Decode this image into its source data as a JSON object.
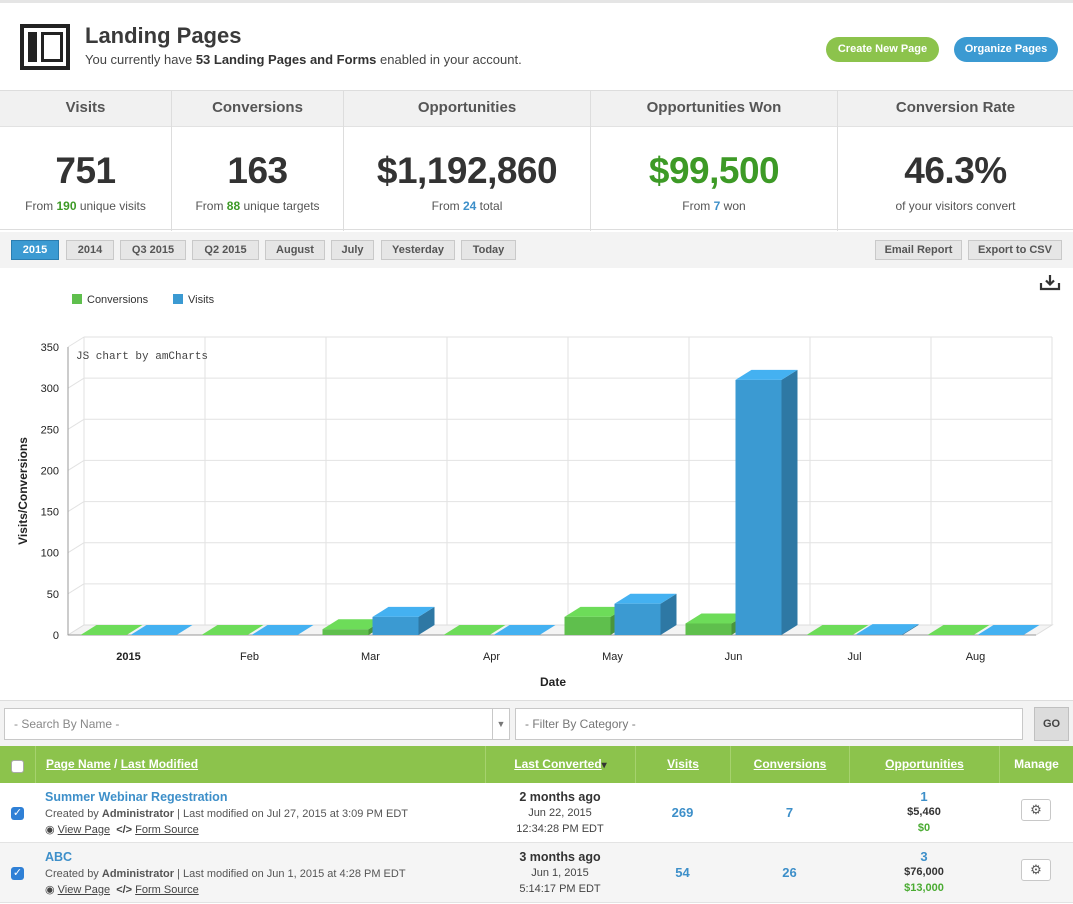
{
  "header": {
    "title": "Landing Pages",
    "subtitle_pre": "You currently have ",
    "subtitle_bold": "53 Landing Pages and Forms",
    "subtitle_post": " enabled in your account.",
    "create_button": "Create New Page",
    "organize_button": "Organize Pages",
    "colors": {
      "create": "#8cc34c",
      "organize": "#3b9ad2"
    }
  },
  "stats": [
    {
      "label": "Visits",
      "value": "751",
      "pre": "From ",
      "highlight": "190",
      "post": " unique visits"
    },
    {
      "label": "Conversions",
      "value": "163",
      "pre": "From ",
      "highlight": "88",
      "post": " unique targets"
    },
    {
      "label": "Opportunities",
      "value": "$1,192,860",
      "pre": "From ",
      "highlight": "24",
      "post": " total"
    },
    {
      "label": "Opportunities Won",
      "value": "$99,500",
      "pre": "From ",
      "highlight": "7",
      "post": " won"
    },
    {
      "label": "Conversion Rate",
      "value": "46.3%",
      "pre": "",
      "highlight": "",
      "post": "of your visitors convert"
    }
  ],
  "filters": {
    "periods": [
      "2015",
      "2014",
      "Q3 2015",
      "Q2 2015",
      "August",
      "July",
      "Yesterday",
      "Today"
    ],
    "active": "2015",
    "email_report": "Email Report",
    "export_csv": "Export to CSV"
  },
  "chart_data": {
    "type": "bar",
    "credit": "JS chart by amCharts",
    "categories": [
      "2015",
      "Feb",
      "Mar",
      "Apr",
      "May",
      "Jun",
      "Jul",
      "Aug"
    ],
    "series": [
      {
        "name": "Conversions",
        "color": "#5fbf4d",
        "values": [
          0,
          0,
          7,
          0,
          22,
          14,
          0,
          0
        ]
      },
      {
        "name": "Visits",
        "color": "#3b9ad2",
        "values": [
          0,
          0,
          22,
          0,
          38,
          310,
          1,
          0
        ]
      }
    ],
    "xlabel": "Date",
    "ylabel": "Visits/Conversions",
    "ylim": [
      0,
      350
    ],
    "yticks": [
      0,
      50,
      100,
      150,
      200,
      250,
      300,
      350
    ],
    "grid": true,
    "legend": "top-left"
  },
  "search": {
    "name_placeholder": "- Search By Name -",
    "category_placeholder": "- Filter By Category -",
    "go": "GO"
  },
  "table": {
    "columns": {
      "page_name": "Page Name",
      "last_modified": "Last Modified",
      "last_converted": "Last Converted",
      "visits": "Visits",
      "conversions": "Conversions",
      "opportunities": "Opportunities",
      "manage": "Manage"
    },
    "sort_indicator": "▾",
    "view_page": "View Page",
    "form_source": "Form Source",
    "rows": [
      {
        "name": "Summer Webinar Regestration",
        "created_pre": "Created by ",
        "created_by": "Administrator",
        "modified": " | Last modified on Jul 27, 2015 at 3:09 PM EDT",
        "ago": "2 months ago",
        "date": "Jun 22, 2015",
        "time": "12:34:28 PM EDT",
        "visits": "269",
        "conversions": "7",
        "opp_count": "1",
        "opp_total": "$5,460",
        "opp_won": "$0"
      },
      {
        "name": "ABC",
        "created_pre": "Created by ",
        "created_by": "Administrator",
        "modified": " | Last modified on Jun 1, 2015 at 4:28 PM EDT",
        "ago": "3 months ago",
        "date": "Jun 1, 2015",
        "time": "5:14:17 PM EDT",
        "visits": "54",
        "conversions": "26",
        "opp_count": "3",
        "opp_total": "$76,000",
        "opp_won": "$13,000"
      }
    ]
  }
}
